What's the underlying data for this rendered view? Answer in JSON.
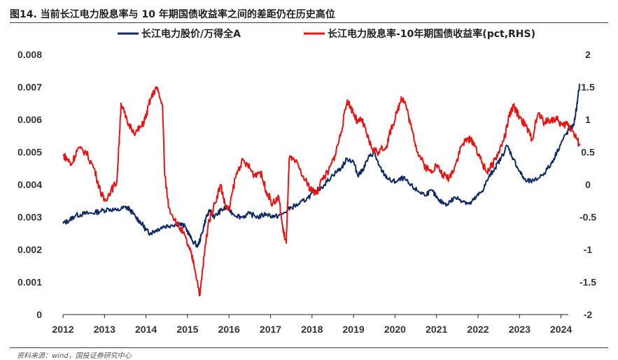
{
  "title": "图14. 当前长江电力股息率与 10 年期国债收益率之间的差距仍在历史高位",
  "source": "资料来源：wind，国投证券研究中心",
  "chart_data": {
    "type": "line",
    "legend_placement": "top",
    "grid": false,
    "x_range": [
      2012,
      2024.6
    ],
    "x_ticks": [
      "2012",
      "2013",
      "2014",
      "2015",
      "2016",
      "2017",
      "2018",
      "2019",
      "2020",
      "2021",
      "2022",
      "2023",
      "2024"
    ],
    "y_left": {
      "label": "",
      "range": [
        0,
        0.008
      ],
      "ticks": [
        "0",
        "0.001",
        "0.002",
        "0.003",
        "0.004",
        "0.005",
        "0.006",
        "0.007",
        "0.008"
      ]
    },
    "y_right": {
      "label": "",
      "range": [
        -2,
        2
      ],
      "ticks": [
        "-2",
        "-1.5",
        "-1",
        "-0.5",
        "0",
        "0.5",
        "1",
        "1.5",
        "2"
      ]
    },
    "series": [
      {
        "name": "长江电力股价/万得全A",
        "axis": "left",
        "color": "#0f2a66",
        "points": [
          [
            2012.0,
            0.0028
          ],
          [
            2012.15,
            0.0029
          ],
          [
            2012.3,
            0.00305
          ],
          [
            2012.5,
            0.0031
          ],
          [
            2012.7,
            0.00312
          ],
          [
            2012.9,
            0.00318
          ],
          [
            2013.1,
            0.00325
          ],
          [
            2013.3,
            0.0032
          ],
          [
            2013.5,
            0.0033
          ],
          [
            2013.6,
            0.00325
          ],
          [
            2013.75,
            0.003
          ],
          [
            2013.9,
            0.0028
          ],
          [
            2014.0,
            0.0026
          ],
          [
            2014.1,
            0.0025
          ],
          [
            2014.25,
            0.0026
          ],
          [
            2014.4,
            0.0027
          ],
          [
            2014.6,
            0.00275
          ],
          [
            2014.8,
            0.0028
          ],
          [
            2014.95,
            0.0027
          ],
          [
            2015.1,
            0.0023
          ],
          [
            2015.25,
            0.0021
          ],
          [
            2015.35,
            0.0025
          ],
          [
            2015.45,
            0.003
          ],
          [
            2015.55,
            0.0032
          ],
          [
            2015.65,
            0.003
          ],
          [
            2015.8,
            0.0032
          ],
          [
            2015.95,
            0.0033
          ],
          [
            2016.1,
            0.0031
          ],
          [
            2016.3,
            0.003
          ],
          [
            2016.5,
            0.0031
          ],
          [
            2016.7,
            0.003
          ],
          [
            2016.9,
            0.0031
          ],
          [
            2017.1,
            0.003
          ],
          [
            2017.3,
            0.0031
          ],
          [
            2017.5,
            0.0033
          ],
          [
            2017.7,
            0.0034
          ],
          [
            2017.9,
            0.0036
          ],
          [
            2018.1,
            0.0038
          ],
          [
            2018.3,
            0.004
          ],
          [
            2018.5,
            0.0043
          ],
          [
            2018.7,
            0.0045
          ],
          [
            2018.85,
            0.0048
          ],
          [
            2019.0,
            0.0047
          ],
          [
            2019.1,
            0.0043
          ],
          [
            2019.2,
            0.0044
          ],
          [
            2019.35,
            0.0048
          ],
          [
            2019.5,
            0.005
          ],
          [
            2019.6,
            0.0046
          ],
          [
            2019.75,
            0.0043
          ],
          [
            2019.9,
            0.0041
          ],
          [
            2020.05,
            0.0041
          ],
          [
            2020.2,
            0.0042
          ],
          [
            2020.35,
            0.004
          ],
          [
            2020.55,
            0.0038
          ],
          [
            2020.7,
            0.0037
          ],
          [
            2020.9,
            0.0038
          ],
          [
            2021.05,
            0.0035
          ],
          [
            2021.25,
            0.0034
          ],
          [
            2021.45,
            0.0036
          ],
          [
            2021.65,
            0.0035
          ],
          [
            2021.8,
            0.0034
          ],
          [
            2021.95,
            0.0036
          ],
          [
            2022.1,
            0.0038
          ],
          [
            2022.25,
            0.0042
          ],
          [
            2022.4,
            0.0045
          ],
          [
            2022.55,
            0.0048
          ],
          [
            2022.7,
            0.0052
          ],
          [
            2022.85,
            0.0048
          ],
          [
            2023.0,
            0.0044
          ],
          [
            2023.15,
            0.0041
          ],
          [
            2023.35,
            0.0041
          ],
          [
            2023.55,
            0.0043
          ],
          [
            2023.75,
            0.0046
          ],
          [
            2023.9,
            0.005
          ],
          [
            2024.05,
            0.0054
          ],
          [
            2024.2,
            0.0057
          ],
          [
            2024.3,
            0.0058
          ],
          [
            2024.38,
            0.0064
          ],
          [
            2024.45,
            0.0071
          ]
        ]
      },
      {
        "name": "长江电力股息率-10年期国债收益率(pct,RHS)",
        "axis": "right",
        "color": "#ee1111",
        "points": [
          [
            2012.0,
            0.45
          ],
          [
            2012.1,
            0.4
          ],
          [
            2012.2,
            0.3
          ],
          [
            2012.35,
            0.55
          ],
          [
            2012.55,
            0.5
          ],
          [
            2012.75,
            0.25
          ],
          [
            2012.9,
            -0.1
          ],
          [
            2013.0,
            -0.25
          ],
          [
            2013.15,
            -0.1
          ],
          [
            2013.3,
            0.05
          ],
          [
            2013.4,
            1.25
          ],
          [
            2013.55,
            0.95
          ],
          [
            2013.75,
            0.8
          ],
          [
            2013.9,
            0.9
          ],
          [
            2014.0,
            1.05
          ],
          [
            2014.1,
            1.3
          ],
          [
            2014.25,
            1.5
          ],
          [
            2014.4,
            1.2
          ],
          [
            2014.45,
            0.15
          ],
          [
            2014.55,
            -0.35
          ],
          [
            2014.75,
            -0.6
          ],
          [
            2014.9,
            -0.75
          ],
          [
            2015.05,
            -1.0
          ],
          [
            2015.15,
            -1.2
          ],
          [
            2015.3,
            -1.7
          ],
          [
            2015.4,
            -1.1
          ],
          [
            2015.5,
            -0.6
          ],
          [
            2015.65,
            -0.3
          ],
          [
            2015.8,
            0.0
          ],
          [
            2015.9,
            -0.3
          ],
          [
            2016.0,
            -0.4
          ],
          [
            2016.15,
            0.1
          ],
          [
            2016.3,
            0.35
          ],
          [
            2016.45,
            0.3
          ],
          [
            2016.6,
            0.15
          ],
          [
            2016.75,
            0.2
          ],
          [
            2016.9,
            -0.1
          ],
          [
            2017.05,
            -0.3
          ],
          [
            2017.2,
            -0.2
          ],
          [
            2017.3,
            -0.7
          ],
          [
            2017.38,
            -0.9
          ],
          [
            2017.45,
            0.4
          ],
          [
            2017.6,
            0.35
          ],
          [
            2017.8,
            0.1
          ],
          [
            2017.95,
            -0.05
          ],
          [
            2018.1,
            -0.15
          ],
          [
            2018.25,
            0.1
          ],
          [
            2018.4,
            0.2
          ],
          [
            2018.55,
            0.45
          ],
          [
            2018.7,
            0.8
          ],
          [
            2018.85,
            1.3
          ],
          [
            2019.0,
            1.1
          ],
          [
            2019.1,
            0.95
          ],
          [
            2019.2,
            1.0
          ],
          [
            2019.3,
            0.8
          ],
          [
            2019.45,
            0.55
          ],
          [
            2019.6,
            0.5
          ],
          [
            2019.8,
            0.6
          ],
          [
            2019.9,
            0.85
          ],
          [
            2020.05,
            1.1
          ],
          [
            2020.15,
            1.35
          ],
          [
            2020.25,
            1.25
          ],
          [
            2020.4,
            0.85
          ],
          [
            2020.55,
            0.5
          ],
          [
            2020.7,
            0.3
          ],
          [
            2020.85,
            0.2
          ],
          [
            2021.0,
            0.3
          ],
          [
            2021.15,
            0.15
          ],
          [
            2021.3,
            0.1
          ],
          [
            2021.45,
            0.3
          ],
          [
            2021.6,
            0.6
          ],
          [
            2021.75,
            0.7
          ],
          [
            2021.9,
            0.65
          ],
          [
            2022.05,
            0.4
          ],
          [
            2022.2,
            0.2
          ],
          [
            2022.35,
            0.3
          ],
          [
            2022.5,
            0.5
          ],
          [
            2022.65,
            0.75
          ],
          [
            2022.75,
            1.05
          ],
          [
            2022.85,
            1.2
          ],
          [
            2023.0,
            1.05
          ],
          [
            2023.15,
            0.9
          ],
          [
            2023.3,
            0.7
          ],
          [
            2023.45,
            1.1
          ],
          [
            2023.6,
            0.95
          ],
          [
            2023.75,
            1.0
          ],
          [
            2023.9,
            1.0
          ],
          [
            2024.05,
            0.9
          ],
          [
            2024.15,
            0.95
          ],
          [
            2024.25,
            0.85
          ],
          [
            2024.38,
            0.7
          ],
          [
            2024.45,
            0.6
          ]
        ]
      }
    ]
  }
}
